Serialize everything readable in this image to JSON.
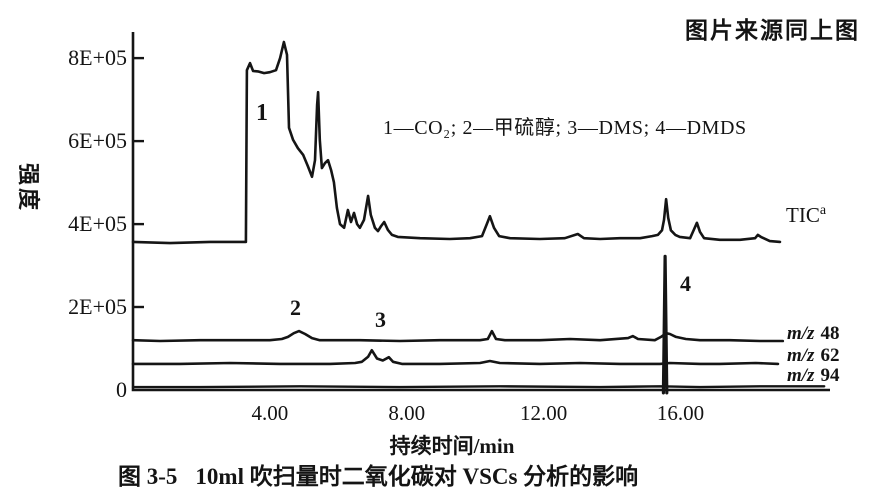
{
  "labels": {
    "source_note": "图片来源同上图",
    "legend": "1—CO₂;  2—甲硫醇;  3—DMS;  4—DMDS",
    "tic": "TIC",
    "tic_sup": "a",
    "mz": [
      {
        "prefix": "m/z",
        "number": "48"
      },
      {
        "prefix": "m/z",
        "number": "62"
      },
      {
        "prefix": "m/z",
        "number": "94"
      }
    ],
    "peaks": [
      "1",
      "2",
      "3",
      "4"
    ],
    "caption_fig": "图 3-5",
    "caption_text": "10ml 吹扫量时二氧化碳对 VSCs 分析的影响"
  },
  "chart_data": {
    "type": "line",
    "title": "图 3-5 10ml 吹扫量时二氧化碳对 VSCs 分析的影响",
    "xlabel": "持续时间/min",
    "ylabel": "强度",
    "xlim": [
      0,
      20.37
    ],
    "ylim": [
      0,
      863000
    ],
    "grid": false,
    "legend_note": "1=CO2, 2=甲硫醇(methanethiol), 3=DMS, 4=DMDS",
    "line_color": "#151515",
    "x_ticks": [
      {
        "t": 4,
        "label": "4.00"
      },
      {
        "t": 8,
        "label": "8.00"
      },
      {
        "t": 12,
        "label": "12.00"
      },
      {
        "t": 16,
        "label": "16.00"
      }
    ],
    "y_ticks": [
      {
        "v": 0,
        "label": "0"
      },
      {
        "v": 200000,
        "label": "2E+05"
      },
      {
        "v": 400000,
        "label": "4E+05"
      },
      {
        "v": 600000,
        "label": "6E+05"
      },
      {
        "v": 800000,
        "label": "8E+05"
      }
    ],
    "series": [
      {
        "name": "trace-tic",
        "width": 2.6,
        "points": [
          [
            0,
            357000
          ],
          [
            1.08,
            354000
          ],
          [
            2.25,
            357000
          ],
          [
            3.3,
            357000
          ],
          [
            3.33,
            771000
          ],
          [
            3.42,
            788000
          ],
          [
            3.51,
            769000
          ],
          [
            3.65,
            768000
          ],
          [
            3.83,
            764000
          ],
          [
            4.0,
            766000
          ],
          [
            4.18,
            771000
          ],
          [
            4.3,
            800000
          ],
          [
            4.41,
            839000
          ],
          [
            4.5,
            808000
          ],
          [
            4.56,
            632000
          ],
          [
            4.68,
            603000
          ],
          [
            4.82,
            583000
          ],
          [
            4.97,
            567000
          ],
          [
            5.11,
            540000
          ],
          [
            5.23,
            514000
          ],
          [
            5.32,
            554000
          ],
          [
            5.38,
            687000
          ],
          [
            5.41,
            718000
          ],
          [
            5.46,
            603000
          ],
          [
            5.52,
            535000
          ],
          [
            5.61,
            547000
          ],
          [
            5.7,
            554000
          ],
          [
            5.79,
            530000
          ],
          [
            5.87,
            501000
          ],
          [
            5.96,
            439000
          ],
          [
            6.05,
            400000
          ],
          [
            6.17,
            391000
          ],
          [
            6.28,
            434000
          ],
          [
            6.37,
            405000
          ],
          [
            6.46,
            427000
          ],
          [
            6.55,
            400000
          ],
          [
            6.63,
            391000
          ],
          [
            6.75,
            410000
          ],
          [
            6.87,
            468000
          ],
          [
            6.95,
            422000
          ],
          [
            7.07,
            391000
          ],
          [
            7.16,
            383000
          ],
          [
            7.25,
            395000
          ],
          [
            7.34,
            405000
          ],
          [
            7.45,
            386000
          ],
          [
            7.57,
            374000
          ],
          [
            7.74,
            369000
          ],
          [
            8.39,
            366000
          ],
          [
            9.26,
            364000
          ],
          [
            9.85,
            366000
          ],
          [
            10.2,
            371000
          ],
          [
            10.34,
            400000
          ],
          [
            10.43,
            419000
          ],
          [
            10.55,
            391000
          ],
          [
            10.7,
            371000
          ],
          [
            11.02,
            366000
          ],
          [
            11.89,
            364000
          ],
          [
            12.62,
            366000
          ],
          [
            13.0,
            376000
          ],
          [
            13.18,
            366000
          ],
          [
            13.65,
            364000
          ],
          [
            14.23,
            366000
          ],
          [
            14.82,
            366000
          ],
          [
            15.17,
            371000
          ],
          [
            15.34,
            374000
          ],
          [
            15.46,
            385000
          ],
          [
            15.52,
            410000
          ],
          [
            15.58,
            460000
          ],
          [
            15.64,
            415000
          ],
          [
            15.72,
            385000
          ],
          [
            15.85,
            374000
          ],
          [
            15.98,
            369000
          ],
          [
            16.28,
            366000
          ],
          [
            16.39,
            386000
          ],
          [
            16.48,
            403000
          ],
          [
            16.57,
            381000
          ],
          [
            16.69,
            366000
          ],
          [
            17.15,
            362000
          ],
          [
            17.74,
            362000
          ],
          [
            18.18,
            366000
          ],
          [
            18.26,
            374000
          ],
          [
            18.35,
            369000
          ],
          [
            18.61,
            359000
          ],
          [
            18.91,
            357000
          ]
        ]
      },
      {
        "name": "trace-mz48",
        "width": 2.6,
        "points": [
          [
            0,
            120000
          ],
          [
            0.79,
            118000
          ],
          [
            1.96,
            120000
          ],
          [
            3.13,
            120000
          ],
          [
            4.0,
            120000
          ],
          [
            4.35,
            123000
          ],
          [
            4.53,
            128000
          ],
          [
            4.7,
            137000
          ],
          [
            4.85,
            142000
          ],
          [
            5.03,
            135000
          ],
          [
            5.23,
            125000
          ],
          [
            5.46,
            120000
          ],
          [
            6.63,
            120000
          ],
          [
            7.8,
            118000
          ],
          [
            8.97,
            120000
          ],
          [
            10.14,
            120000
          ],
          [
            10.37,
            123000
          ],
          [
            10.49,
            142000
          ],
          [
            10.61,
            123000
          ],
          [
            10.87,
            120000
          ],
          [
            11.89,
            120000
          ],
          [
            12.77,
            123000
          ],
          [
            13.65,
            120000
          ],
          [
            14.47,
            125000
          ],
          [
            14.61,
            130000
          ],
          [
            14.76,
            123000
          ],
          [
            15.25,
            120000
          ],
          [
            15.43,
            128000
          ],
          [
            15.58,
            137000
          ],
          [
            15.69,
            135000
          ],
          [
            15.87,
            128000
          ],
          [
            16.16,
            123000
          ],
          [
            16.57,
            120000
          ],
          [
            17.44,
            120000
          ],
          [
            18.32,
            118000
          ],
          [
            18.99,
            118000
          ]
        ]
      },
      {
        "name": "trace-mz62",
        "width": 2.6,
        "points": [
          [
            0,
            63000
          ],
          [
            1.37,
            63000
          ],
          [
            2.84,
            65000
          ],
          [
            4.3,
            63000
          ],
          [
            5.76,
            63000
          ],
          [
            6.49,
            65000
          ],
          [
            6.69,
            68000
          ],
          [
            6.87,
            80000
          ],
          [
            6.98,
            96000
          ],
          [
            7.13,
            76000
          ],
          [
            7.3,
            71000
          ],
          [
            7.48,
            79000
          ],
          [
            7.6,
            68000
          ],
          [
            7.86,
            63000
          ],
          [
            8.97,
            63000
          ],
          [
            10.14,
            65000
          ],
          [
            10.43,
            70000
          ],
          [
            10.72,
            65000
          ],
          [
            11.89,
            63000
          ],
          [
            13.07,
            65000
          ],
          [
            14.23,
            63000
          ],
          [
            15.4,
            63000
          ],
          [
            15.69,
            65000
          ],
          [
            16.57,
            63000
          ],
          [
            17.15,
            63000
          ],
          [
            18.2,
            65000
          ],
          [
            18.85,
            63000
          ]
        ]
      },
      {
        "name": "trace-mz94",
        "width": 2.4,
        "points": [
          [
            0,
            7000
          ],
          [
            1.96,
            7000
          ],
          [
            4.88,
            9000
          ],
          [
            7.8,
            7000
          ],
          [
            10.72,
            9000
          ],
          [
            13.65,
            7000
          ],
          [
            15.4,
            9000
          ],
          [
            16.57,
            7000
          ],
          [
            18.32,
            9000
          ],
          [
            20.2,
            9000
          ]
        ]
      },
      {
        "name": "peak4-spike",
        "width": 3.2,
        "points": [
          [
            15.5,
            -7000
          ],
          [
            15.55,
            322000
          ],
          [
            15.6,
            -7000
          ]
        ]
      }
    ]
  }
}
